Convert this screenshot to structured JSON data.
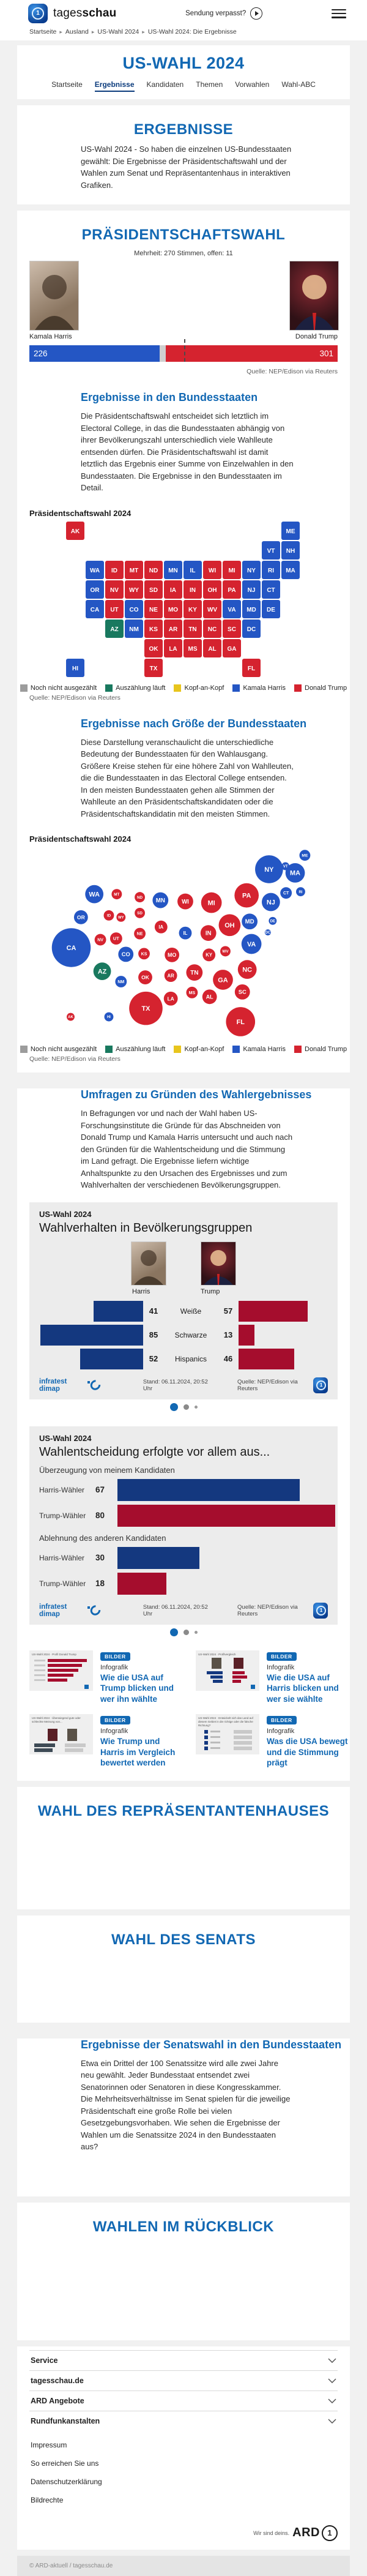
{
  "colors": {
    "harris": "#2456c4",
    "trump": "#d5232f",
    "counting": "#19795f",
    "undecided": "#9c9c9c",
    "tossup": "#e8c51d",
    "chart_harris": "#14387f",
    "chart_trump": "#a50d2d",
    "accent": "#1268b3"
  },
  "header": {
    "brand_light": "tages",
    "brand_bold": "schau",
    "missed_label": "Sendung verpasst?"
  },
  "breadcrumb": [
    "Startseite",
    "Ausland",
    "US-Wahl 2024",
    "US-Wahl 2024: Die Ergebnisse"
  ],
  "title": "US-WAHL 2024",
  "tabs": [
    {
      "label": "Startseite",
      "active": false
    },
    {
      "label": "Ergebnisse",
      "active": true
    },
    {
      "label": "Kandidaten",
      "active": false
    },
    {
      "label": "Themen",
      "active": false
    },
    {
      "label": "Vorwahlen",
      "active": false
    },
    {
      "label": "Wahl-ABC",
      "active": false
    }
  ],
  "intro": {
    "title": "ERGEBNISSE",
    "text": "US-Wahl 2024 - So haben die einzelnen US-Bundesstaaten gewählt: Die Ergebnisse der Präsidentschaftswahl und der Wahlen zum Senat und Repräsentantenhaus in interaktiven Grafiken."
  },
  "president": {
    "title": "PRÄSIDENTSCHAFTSWAHL",
    "majority_note": "Mehrheit: 270 Stimmen, offen: 11",
    "harris_name": "Kamala Harris",
    "trump_name": "Donald Trump",
    "harris_votes": "226",
    "trump_votes": "301",
    "open_votes": 11,
    "total": 538,
    "majority": 270,
    "source": "Quelle: NEP/Edison via Reuters"
  },
  "map_section": {
    "title": "Ergebnisse in den Bundesstaaten",
    "text": "Die Präsidentschaftswahl entscheidet sich letztlich im Electoral College, in das die Bundesstaaten abhängig von ihrer Bevölkerungszahl unterschiedlich viele Wahlleute entsenden dürfen. Die Präsidentschaftswahl ist damit letztlich das Ergebnis einer Summe von Einzelwahlen in den Bundesstaaten. Die Ergebnisse in den Bundesstaaten im Detail.",
    "chart_label": "Präsidentschaftswahl 2024",
    "source": "Quelle: NEP/Edison via Reuters"
  },
  "cartogram_section": {
    "title": "Ergebnisse nach Größe der Bundesstaaten",
    "text": "Diese Darstellung veranschaulicht die unterschiedliche Bedeutung der Bundesstaaten für den Wahlausgang. Größere Kreise stehen für eine höhere Zahl von Wahlleuten, die die Bundesstaaten in das Electoral College entsenden. In den meisten Bundesstaaten gehen alle Stimmen der Wahlleute an den Präsidentschaftskandidaten oder die Präsidentschaftskandidatin mit den meisten Stimmen.",
    "chart_label": "Präsidentschaftswahl 2024",
    "source": "Quelle: NEP/Edison via Reuters"
  },
  "legend": [
    {
      "label": "Noch nicht ausgezählt",
      "key": "undecided"
    },
    {
      "label": "Auszählung läuft",
      "key": "counting"
    },
    {
      "label": "Kopf-an-Kopf",
      "key": "tossup"
    },
    {
      "label": "Kamala Harris",
      "key": "harris"
    },
    {
      "label": "Donald Trump",
      "key": "trump"
    }
  ],
  "polls_section": {
    "title": "Umfragen zu Gründen des Wahlergebnisses",
    "text": "In Befragungen vor und nach der Wahl haben US-Forschungsinstitute die Gründe für das Abschneiden von Donald Trump und Kamala Harris untersucht und auch nach den Gründen für die Wahlentscheidung und die Stimmung im Land gefragt. Die Ergebnisse liefern wichtige Anhaltspunkte zu den Ursachen des Ergebnisses und zum Wahlverhalten der verschiedenen Bevölkerungsgruppen."
  },
  "chart1": {
    "kicker": "US-Wahl 2024",
    "title": "Wahlverhalten in Bevölkerungsgruppen",
    "left_label": "Harris",
    "right_label": "Trump",
    "brand": "infratest dimap",
    "stand": "Stand:  06.11.2024, 20:52 Uhr",
    "source": "Quelle: NEP/Edison via Reuters"
  },
  "chart2": {
    "kicker": "US-Wahl 2024",
    "title": "Wahlentscheidung erfolgte vor allem aus...",
    "brand": "infratest dimap",
    "stand": "Stand:  06.11.2024, 20:52 Uhr",
    "source": "Quelle: NEP/Edison via Reuters"
  },
  "teasers": [
    {
      "badge": "BILDER",
      "kicker": "Infografik",
      "title": "Wie die USA auf Trump blicken und wer ihn wählte",
      "thumb": {
        "type": "red-bars",
        "lines": [
          "US-Wahl 2024",
          "Profil Donald Trump"
        ]
      }
    },
    {
      "badge": "BILDER",
      "kicker": "Infografik",
      "title": "Wie die USA auf Harris blicken und wer sie wählte",
      "thumb": {
        "type": "photo-bars",
        "lines": [
          "US-Wahl 2024",
          "Profilvergleich"
        ]
      }
    },
    {
      "badge": "BILDER",
      "kicker": "Infografik",
      "title": "Wie Trump und Harris im Vergleich bewertet werden",
      "thumb": {
        "type": "compare",
        "lines": [
          "US-Wahl 2024",
          "Überwiegend gute oder schlechte Meinung von..."
        ]
      }
    },
    {
      "badge": "BILDER",
      "kicker": "Infografik",
      "title": "Was die USA bewegt und die Stimmung prägt",
      "thumb": {
        "type": "mini-rows",
        "lines": [
          "US-Wahl 2024",
          "Entwickelt sich das Land auf diesem Gebiet in die richtige oder die falsche Richtung?"
        ]
      }
    }
  ],
  "house_section": {
    "title": "WAHL DES REPRÄSENTANTENHAUSES"
  },
  "senate_section": {
    "title": "WAHL DES SENATS"
  },
  "senate_text": {
    "title": "Ergebnisse der Senatswahl in den Bundesstaaten",
    "text": "Etwa ein Drittel der 100 Senatssitze wird alle zwei Jahre neu gewählt. Jeder Bundesstaat entsendet zwei Senatorinnen oder Senatoren in diese Kongresskammer. Die Mehrheitsverhältnisse im Senat spielen für die jeweilige Präsidentschaft eine große Rolle bei vielen Gesetzgebungsvorhaben. Wie sehen die Ergebnisse der Wahlen um die Senatssitze 2024 in den Bundesstaaten aus?"
  },
  "review_section": {
    "title": "WAHLEN IM RÜCKBLICK"
  },
  "footer": {
    "accordions": [
      "Service",
      "tagesschau.de",
      "ARD Angebote",
      "Rundfunkanstalten"
    ],
    "links": [
      "Impressum",
      "So erreichen Sie uns",
      "Datenschutzerklärung",
      "Bildrechte"
    ],
    "ard_tagline": "Wir sind deins.",
    "ard_label": "ARD",
    "copyright": "© ARD-aktuell / tagesschau.de"
  },
  "chart_data": [
    {
      "type": "bar",
      "title": "Electoral College",
      "categories": [
        "Kamala Harris",
        "offen",
        "Donald Trump"
      ],
      "values": [
        226,
        11,
        301
      ],
      "majority": 270,
      "total": 538
    },
    {
      "type": "choropleth-map",
      "title": "Präsidentschaftswahl 2024",
      "legend": [
        "Noch nicht ausgezählt",
        "Auszählung läuft",
        "Kopf-an-Kopf",
        "Kamala Harris",
        "Donald Trump"
      ],
      "states": [
        {
          "abbr": "AL",
          "ev": 9,
          "winner": "trump"
        },
        {
          "abbr": "AK",
          "ev": 3,
          "winner": "trump"
        },
        {
          "abbr": "AZ",
          "ev": 11,
          "winner": "counting"
        },
        {
          "abbr": "AR",
          "ev": 6,
          "winner": "trump"
        },
        {
          "abbr": "CA",
          "ev": 54,
          "winner": "harris"
        },
        {
          "abbr": "CO",
          "ev": 10,
          "winner": "harris"
        },
        {
          "abbr": "CT",
          "ev": 7,
          "winner": "harris"
        },
        {
          "abbr": "DC",
          "ev": 3,
          "winner": "harris"
        },
        {
          "abbr": "DE",
          "ev": 3,
          "winner": "harris"
        },
        {
          "abbr": "FL",
          "ev": 30,
          "winner": "trump"
        },
        {
          "abbr": "GA",
          "ev": 16,
          "winner": "trump"
        },
        {
          "abbr": "HI",
          "ev": 4,
          "winner": "harris"
        },
        {
          "abbr": "ID",
          "ev": 4,
          "winner": "trump"
        },
        {
          "abbr": "IL",
          "ev": 19,
          "winner": "harris"
        },
        {
          "abbr": "IN",
          "ev": 11,
          "winner": "trump"
        },
        {
          "abbr": "IA",
          "ev": 6,
          "winner": "trump"
        },
        {
          "abbr": "KS",
          "ev": 6,
          "winner": "trump"
        },
        {
          "abbr": "KY",
          "ev": 8,
          "winner": "trump"
        },
        {
          "abbr": "LA",
          "ev": 8,
          "winner": "trump"
        },
        {
          "abbr": "ME",
          "ev": 4,
          "winner": "harris"
        },
        {
          "abbr": "MD",
          "ev": 10,
          "winner": "harris"
        },
        {
          "abbr": "MA",
          "ev": 11,
          "winner": "harris"
        },
        {
          "abbr": "MI",
          "ev": 15,
          "winner": "trump"
        },
        {
          "abbr": "MN",
          "ev": 10,
          "winner": "harris"
        },
        {
          "abbr": "MS",
          "ev": 6,
          "winner": "trump"
        },
        {
          "abbr": "MO",
          "ev": 10,
          "winner": "trump"
        },
        {
          "abbr": "MT",
          "ev": 4,
          "winner": "trump"
        },
        {
          "abbr": "NE",
          "ev": 5,
          "winner": "trump"
        },
        {
          "abbr": "NV",
          "ev": 6,
          "winner": "trump"
        },
        {
          "abbr": "NH",
          "ev": 4,
          "winner": "harris"
        },
        {
          "abbr": "NJ",
          "ev": 14,
          "winner": "harris"
        },
        {
          "abbr": "NM",
          "ev": 5,
          "winner": "harris"
        },
        {
          "abbr": "NY",
          "ev": 28,
          "winner": "harris"
        },
        {
          "abbr": "NC",
          "ev": 16,
          "winner": "trump"
        },
        {
          "abbr": "ND",
          "ev": 3,
          "winner": "trump"
        },
        {
          "abbr": "OH",
          "ev": 17,
          "winner": "trump"
        },
        {
          "abbr": "OK",
          "ev": 7,
          "winner": "trump"
        },
        {
          "abbr": "OR",
          "ev": 8,
          "winner": "harris"
        },
        {
          "abbr": "PA",
          "ev": 19,
          "winner": "trump"
        },
        {
          "abbr": "RI",
          "ev": 4,
          "winner": "harris"
        },
        {
          "abbr": "SC",
          "ev": 9,
          "winner": "trump"
        },
        {
          "abbr": "SD",
          "ev": 3,
          "winner": "trump"
        },
        {
          "abbr": "TN",
          "ev": 11,
          "winner": "trump"
        },
        {
          "abbr": "TX",
          "ev": 40,
          "winner": "trump"
        },
        {
          "abbr": "UT",
          "ev": 6,
          "winner": "trump"
        },
        {
          "abbr": "VT",
          "ev": 3,
          "winner": "harris"
        },
        {
          "abbr": "VA",
          "ev": 13,
          "winner": "harris"
        },
        {
          "abbr": "WA",
          "ev": 12,
          "winner": "harris"
        },
        {
          "abbr": "WV",
          "ev": 4,
          "winner": "trump"
        },
        {
          "abbr": "WI",
          "ev": 10,
          "winner": "trump"
        },
        {
          "abbr": "WY",
          "ev": 3,
          "winner": "trump"
        }
      ]
    },
    {
      "type": "cartogram",
      "title": "Präsidentschaftswahl 2024",
      "sized_by": "electoral_votes",
      "states": "same data as chart_data[1].states"
    },
    {
      "type": "bar",
      "title": "Wahlverhalten in Bevölkerungsgruppen",
      "categories": [
        "Weiße",
        "Schwarze",
        "Hispanics"
      ],
      "series": [
        {
          "name": "Harris",
          "values": [
            41,
            85,
            52
          ]
        },
        {
          "name": "Trump",
          "values": [
            57,
            13,
            46
          ]
        }
      ],
      "unit": "%"
    },
    {
      "type": "bar",
      "title": "Wahlentscheidung erfolgte vor allem aus...",
      "groups": [
        {
          "label": "Überzeugung von meinem Kandidaten",
          "rows": [
            {
              "label": "Harris-Wähler",
              "value": 67,
              "key": "chart_harris"
            },
            {
              "label": "Trump-Wähler",
              "value": 80,
              "key": "chart_trump"
            }
          ]
        },
        {
          "label": "Ablehnung des anderen Kandidaten",
          "rows": [
            {
              "label": "Harris-Wähler",
              "value": 30,
              "key": "chart_harris"
            },
            {
              "label": "Trump-Wähler",
              "value": 18,
              "key": "chart_trump"
            }
          ]
        }
      ],
      "unit": "%"
    }
  ]
}
